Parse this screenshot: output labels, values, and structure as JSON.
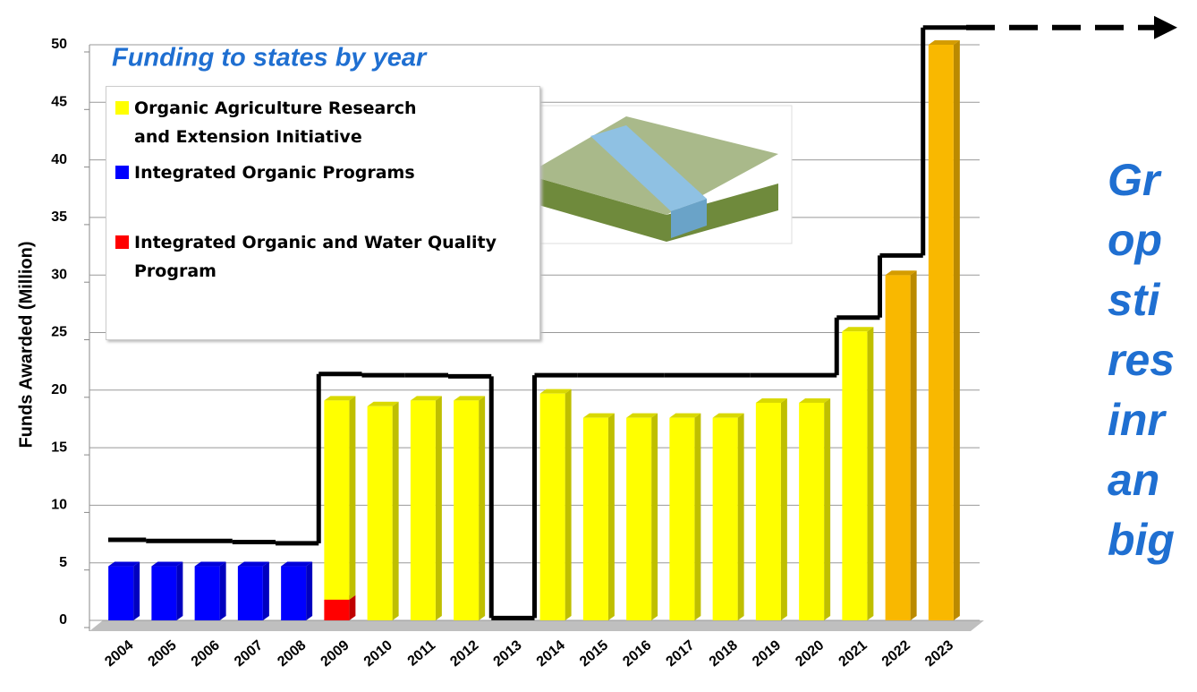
{
  "chart_data": {
    "type": "bar",
    "title": "Funding to states by year",
    "y_label": "Funds Awarded (Million)",
    "categories": [
      "2004",
      "2005",
      "2006",
      "2007",
      "2008",
      "2009",
      "2010",
      "2011",
      "2012",
      "2013",
      "2014",
      "2015",
      "2016",
      "2017",
      "2018",
      "2019",
      "2020",
      "2021",
      "2022",
      "2023"
    ],
    "series": [
      {
        "name": "Organic Agriculture Research and Extension Initiative",
        "color": "#ffff00",
        "values": [
          null,
          null,
          null,
          null,
          null,
          17.3,
          18.6,
          19.1,
          19.1,
          null,
          19.7,
          17.6,
          17.6,
          17.6,
          17.6,
          18.9,
          18.9,
          25.1,
          30,
          50
        ],
        "colors": [
          "#ffff00",
          "#ffff00",
          "#ffff00",
          "#ffff00",
          "#ffff00",
          "#ffff00",
          "#ffff00",
          "#ffff00",
          "#ffff00",
          "#ffff00",
          "#ffff00",
          "#ffff00",
          "#ffff00",
          "#ffff00",
          "#ffff00",
          "#ffff00",
          "#ffff00",
          "#ffff00",
          "#f9b800",
          "#f9b800"
        ]
      },
      {
        "name": "Integrated Organic Programs",
        "color": "#0000ff",
        "values": [
          4.7,
          4.7,
          4.7,
          4.7,
          4.7,
          null,
          null,
          null,
          null,
          null,
          null,
          null,
          null,
          null,
          null,
          null,
          null,
          null,
          null,
          null
        ]
      },
      {
        "name": "Integrated Organic and Water Quality Program",
        "color": "#ff0000",
        "values": [
          null,
          null,
          null,
          null,
          null,
          1.8,
          null,
          null,
          null,
          null,
          null,
          null,
          null,
          null,
          null,
          null,
          null,
          null,
          null,
          null
        ]
      }
    ],
    "outline": {
      "color": "#000000",
      "values": [
        7,
        6.9,
        6.9,
        6.8,
        6.7,
        21.4,
        21.3,
        21.3,
        21.2,
        0.2,
        21.3,
        21.3,
        21.3,
        21.3,
        21.3,
        21.3,
        21.3,
        26.3,
        31.7,
        51.5
      ]
    },
    "stacked": true,
    "ylim": [
      0,
      50
    ],
    "yticks": [
      0,
      5,
      10,
      15,
      20,
      25,
      30,
      35,
      40,
      45,
      50
    ],
    "grid": true,
    "side_text": [
      "Gr",
      "op",
      "sti",
      "res",
      "inr",
      "an",
      "big"
    ],
    "side_text_color": "#1f6fd1"
  }
}
